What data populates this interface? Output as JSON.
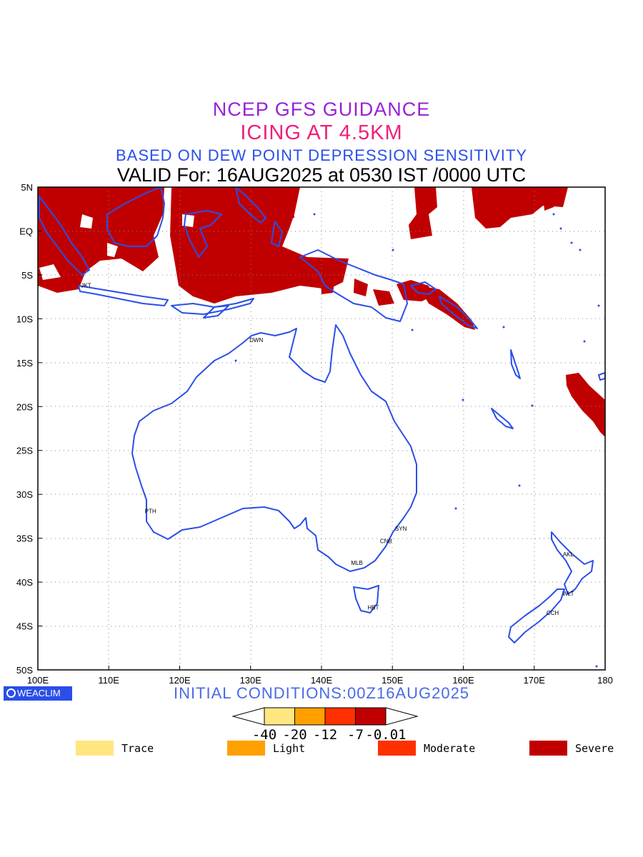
{
  "titles": {
    "line1": "NCEP GFS GUIDANCE",
    "line2": "ICING AT 4.5KM",
    "line3": "BASED ON DEW POINT DEPRESSION SENSITIVITY",
    "line4": "VALID For: 16AUG2025 at 0530 IST /0000 UTC"
  },
  "axes": {
    "lon_labels": [
      "100E",
      "110E",
      "120E",
      "130E",
      "140E",
      "150E",
      "160E",
      "170E",
      "180"
    ],
    "lat_labels": [
      "5N",
      "EQ",
      "5S",
      "10S",
      "15S",
      "20S",
      "25S",
      "30S",
      "35S",
      "40S",
      "45S",
      "50S"
    ],
    "lon_range": [
      100,
      180
    ],
    "lat_range": [
      5,
      -50
    ]
  },
  "cities": [
    {
      "code": "JKT",
      "lon": 106.8,
      "lat": -6.2
    },
    {
      "code": "DWN",
      "lon": 130.8,
      "lat": -12.4
    },
    {
      "code": "PTH",
      "lon": 115.9,
      "lat": -31.9
    },
    {
      "code": "SYN",
      "lon": 151.2,
      "lat": -33.9
    },
    {
      "code": "CNB",
      "lon": 149.1,
      "lat": -35.3
    },
    {
      "code": "MLB",
      "lon": 145.0,
      "lat": -37.8
    },
    {
      "code": "HBT",
      "lon": 147.3,
      "lat": -42.9
    },
    {
      "code": "AKL",
      "lon": 174.8,
      "lat": -36.8
    },
    {
      "code": "WLT",
      "lon": 174.8,
      "lat": -41.3
    },
    {
      "code": "CCH",
      "lon": 172.6,
      "lat": -43.5
    }
  ],
  "logo": "WEACLIM",
  "initial_conditions": "INITIAL CONDITIONS:00Z16AUG2025",
  "colorbar": {
    "ticks": [
      "-40",
      "-20",
      "-12",
      "-7",
      "-0.01"
    ],
    "colors": [
      "#ffe680",
      "#ffa000",
      "#ff3000",
      "#c00000"
    ]
  },
  "legend": [
    {
      "label": "Trace",
      "color": "#ffe680"
    },
    {
      "label": "Light",
      "color": "#ffa000"
    },
    {
      "label": "Moderate",
      "color": "#ff3000"
    },
    {
      "label": "Severe",
      "color": "#c00000"
    }
  ],
  "colors": {
    "coast": "#2a4ee8",
    "severe": "#c00000"
  }
}
